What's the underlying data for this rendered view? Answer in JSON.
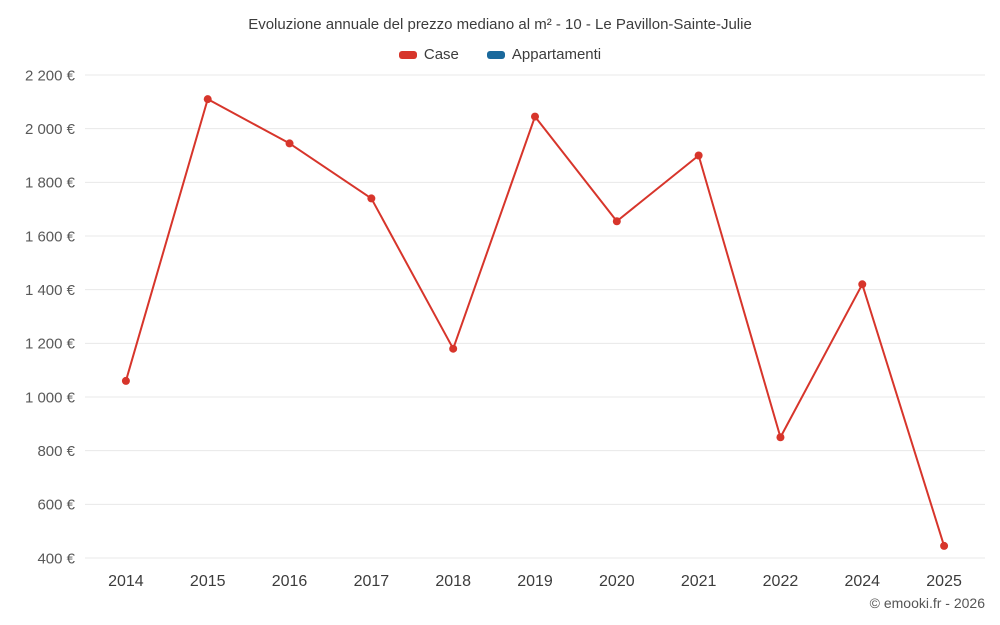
{
  "header": {
    "title": "Evoluzione annuale del prezzo mediano al m² - 10 - Le Pavillon-Sainte-Julie"
  },
  "legend": {
    "items": [
      {
        "label": "Case",
        "color": "#d7352b"
      },
      {
        "label": "Appartamenti",
        "color": "#1a699c"
      }
    ]
  },
  "footer": {
    "text": "© emooki.fr - 2026"
  },
  "chart_data": {
    "type": "line",
    "title": "Evoluzione annuale del prezzo mediano al m² - 10 - Le Pavillon-Sainte-Julie",
    "categories": [
      "2014",
      "2015",
      "2016",
      "2017",
      "2018",
      "2019",
      "2020",
      "2021",
      "2022",
      "2024",
      "2025"
    ],
    "series": [
      {
        "name": "Case",
        "color": "#d7352b",
        "values": [
          1060,
          2110,
          1945,
          1740,
          1180,
          2045,
          1655,
          1900,
          850,
          1420,
          445
        ]
      },
      {
        "name": "Appartamenti",
        "color": "#1a699c",
        "values": []
      }
    ],
    "ylim": [
      400,
      2200
    ],
    "yticks": [
      {
        "value": 400,
        "label": "400 €"
      },
      {
        "value": 600,
        "label": "600 €"
      },
      {
        "value": 800,
        "label": "800 €"
      },
      {
        "value": 1000,
        "label": "1 000 €"
      },
      {
        "value": 1200,
        "label": "1 200 €"
      },
      {
        "value": 1400,
        "label": "1 400 €"
      },
      {
        "value": 1600,
        "label": "1 600 €"
      },
      {
        "value": 1800,
        "label": "1 800 €"
      },
      {
        "value": 2000,
        "label": "2 000 €"
      },
      {
        "value": 2200,
        "label": "2 200 €"
      }
    ],
    "grid": true,
    "legend_position": "top",
    "xlabel": "",
    "ylabel": ""
  }
}
